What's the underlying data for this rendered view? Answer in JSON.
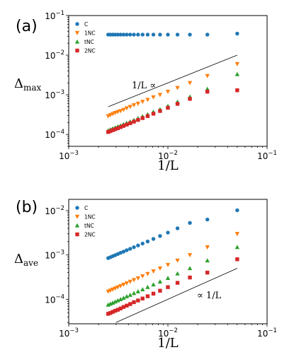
{
  "chart_data": [
    {
      "type": "scatter",
      "panel_label": "(a)",
      "xlabel": "1/L",
      "ylabel": {
        "main": "Δ",
        "sub": "max"
      },
      "xscale": "log",
      "yscale": "log",
      "xlim": [
        0.001,
        0.1
      ],
      "ylim": [
        5e-05,
        0.1
      ],
      "xticks": [
        0.001,
        0.01,
        0.1
      ],
      "xtick_labels": [
        {
          "base": "10",
          "exp": "−3"
        },
        {
          "base": "10",
          "exp": "−2"
        },
        {
          "base": "10",
          "exp": "−1"
        }
      ],
      "yticks": [
        0.0001,
        0.001,
        0.01,
        0.1
      ],
      "ytick_labels": [
        {
          "base": "10",
          "exp": "−4"
        },
        {
          "base": "10",
          "exp": "−3"
        },
        {
          "base": "10",
          "exp": "−2"
        },
        {
          "base": "10",
          "exp": "−1"
        }
      ],
      "legend_position": "top-left",
      "x": [
        0.0025,
        0.002632,
        0.002778,
        0.002941,
        0.003125,
        0.003333,
        0.003571,
        0.003846,
        0.004167,
        0.004545,
        0.005,
        0.005556,
        0.00625,
        0.007143,
        0.008333,
        0.01,
        0.0125,
        0.016667,
        0.025,
        0.05
      ],
      "series": [
        {
          "name": "C",
          "color": "#1f77b4",
          "marker": "circle",
          "values": [
            0.033,
            0.033,
            0.033,
            0.033,
            0.033,
            0.033,
            0.033,
            0.033,
            0.033,
            0.033,
            0.033,
            0.033,
            0.033,
            0.033,
            0.033,
            0.033,
            0.033,
            0.033,
            0.033,
            0.035
          ]
        },
        {
          "name": "1NC",
          "color": "#ff7f0e",
          "marker": "triangle-down",
          "values": [
            0.00029,
            0.00031,
            0.00033,
            0.00035,
            0.00037,
            0.00039,
            0.00042,
            0.00046,
            0.0005,
            0.00055,
            0.0006,
            0.00067,
            0.00075,
            0.00087,
            0.001,
            0.0012,
            0.0015,
            0.002,
            0.003,
            0.006
          ]
        },
        {
          "name": "tNC",
          "color": "#2ca02c",
          "marker": "triangle-up",
          "values": [
            0.000125,
            0.000133,
            0.00014,
            0.000148,
            0.000157,
            0.000167,
            0.00018,
            0.000195,
            0.00021,
            0.00023,
            0.000255,
            0.000285,
            0.00032,
            0.00037,
            0.00043,
            0.00052,
            0.00066,
            0.00089,
            0.0014,
            0.0033
          ]
        },
        {
          "name": "2NC",
          "color": "#d62728",
          "marker": "square",
          "values": [
            0.000115,
            0.000121,
            0.000128,
            0.000135,
            0.000143,
            0.000153,
            0.000164,
            0.000177,
            0.000192,
            0.00021,
            0.000232,
            0.000258,
            0.00029,
            0.000333,
            0.00039,
            0.00047,
            0.00059,
            0.00079,
            0.0012,
            0.0013
          ]
        }
      ],
      "reference_line": {
        "label": "1/L ∝",
        "x": [
          0.0025,
          0.05
        ],
        "y": [
          0.0005,
          0.01
        ]
      }
    },
    {
      "type": "scatter",
      "panel_label": "(b)",
      "xlabel": "1/L",
      "ylabel": {
        "main": "Δ",
        "sub": "ave"
      },
      "xscale": "log",
      "yscale": "log",
      "xlim": [
        0.001,
        0.1
      ],
      "ylim": [
        2.8e-05,
        0.018
      ],
      "xticks": [
        0.001,
        0.01,
        0.1
      ],
      "xtick_labels": [
        {
          "base": "10",
          "exp": "−3"
        },
        {
          "base": "10",
          "exp": "−2"
        },
        {
          "base": "10",
          "exp": "−1"
        }
      ],
      "yticks": [
        0.0001,
        0.001,
        0.01
      ],
      "ytick_labels": [
        {
          "base": "10",
          "exp": "−4"
        },
        {
          "base": "10",
          "exp": "−3"
        },
        {
          "base": "10",
          "exp": "−2"
        }
      ],
      "legend_position": "top-left",
      "x": [
        0.0025,
        0.002632,
        0.002778,
        0.002941,
        0.003125,
        0.003333,
        0.003571,
        0.003846,
        0.004167,
        0.004545,
        0.005,
        0.005556,
        0.00625,
        0.007143,
        0.008333,
        0.01,
        0.0125,
        0.016667,
        0.025,
        0.05
      ],
      "series": [
        {
          "name": "C",
          "color": "#1f77b4",
          "marker": "circle",
          "values": [
            0.00085,
            0.00089,
            0.00094,
            0.00099,
            0.00105,
            0.00112,
            0.00119,
            0.00128,
            0.00138,
            0.0015,
            0.00164,
            0.00181,
            0.00202,
            0.0023,
            0.00268,
            0.0032,
            0.004,
            0.0053,
            0.0063,
            0.0102
          ]
        },
        {
          "name": "1NC",
          "color": "#ff7f0e",
          "marker": "triangle-down",
          "values": [
            0.00015,
            0.000158,
            0.000167,
            0.000177,
            0.000188,
            0.0002,
            0.000215,
            0.000232,
            0.00025,
            0.000273,
            0.0003,
            0.000333,
            0.000375,
            0.00043,
            0.0005,
            0.0006,
            0.00075,
            0.001,
            0.0015,
            0.003
          ]
        },
        {
          "name": "tNC",
          "color": "#2ca02c",
          "marker": "triangle-up",
          "values": [
            7.5e-05,
            7.9e-05,
            8.3e-05,
            8.8e-05,
            9.4e-05,
            0.0001,
            0.000107,
            0.000116,
            0.000125,
            0.000137,
            0.00015,
            0.000167,
            0.000188,
            0.000215,
            0.00025,
            0.0003,
            0.00038,
            0.0005,
            0.00075,
            0.0015
          ]
        },
        {
          "name": "2NC",
          "color": "#d62728",
          "marker": "square",
          "values": [
            4.7e-05,
            4.9e-05,
            5.2e-05,
            5.5e-05,
            5.8e-05,
            6.2e-05,
            6.7e-05,
            7.2e-05,
            7.8e-05,
            8.6e-05,
            9.4e-05,
            0.000104,
            0.000117,
            0.000134,
            0.000156,
            0.000188,
            0.000235,
            0.00031,
            0.0004,
            0.0008
          ]
        }
      ],
      "reference_line": {
        "label": "∝ 1/L",
        "x": [
          0.003,
          0.05
        ],
        "y": [
          3e-05,
          0.0005
        ]
      }
    }
  ]
}
